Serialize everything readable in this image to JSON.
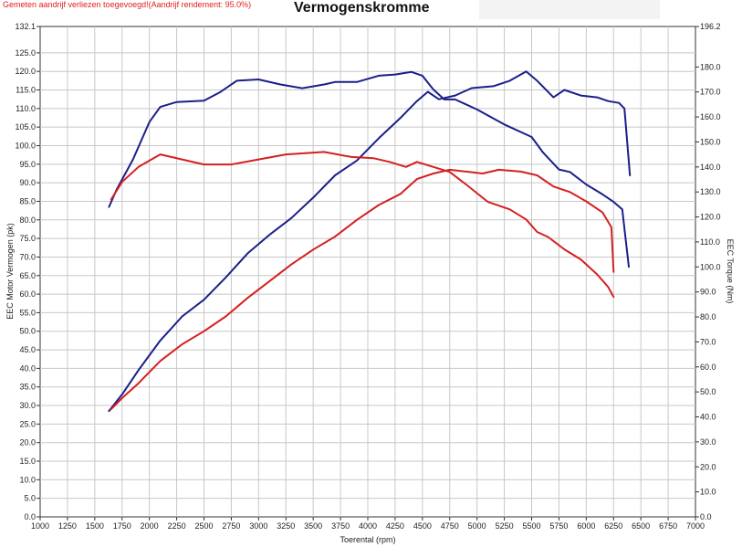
{
  "header": {
    "note": "Gemeten aandrijf verliezen toegevoegd!(Aandrijf rendement: 95.0%)",
    "title": "Vermogenskromme"
  },
  "colors": {
    "series_a": "#1b1f8a",
    "series_b": "#d42020",
    "grid": "#c8c8c8",
    "note": "#e0201e"
  },
  "chart_data": {
    "type": "line",
    "title": "Vermogenskromme",
    "xlabel": "Toerental (rpm)",
    "ylabel_left": "EEC Motor Vermogen (pk)",
    "ylabel_right": "EEC Torque (Nm)",
    "xlim": [
      1000,
      7000
    ],
    "ylim_left": [
      0,
      132.1
    ],
    "ylim_right": [
      0,
      196.2
    ],
    "grid": true,
    "x_ticks": [
      "1000",
      "1250",
      "1500",
      "1750",
      "2000",
      "2250",
      "2500",
      "2750",
      "3000",
      "3250",
      "3500",
      "3750",
      "4000",
      "4250",
      "4500",
      "4750",
      "5000",
      "5250",
      "5500",
      "5750",
      "6000",
      "6250",
      "6500",
      "6750",
      "7000"
    ],
    "y_ticks_left": [
      "0.0",
      "5.0",
      "10.0",
      "15.0",
      "20.0",
      "25.0",
      "30.0",
      "35.0",
      "40.0",
      "45.0",
      "50.0",
      "55.0",
      "60.0",
      "65.0",
      "70.0",
      "75.0",
      "80.0",
      "85.0",
      "90.0",
      "95.0",
      "100.0",
      "105.0",
      "110.0",
      "115.0",
      "120.0",
      "125.0",
      "132.1"
    ],
    "y_ticks_right": [
      "0.0",
      "10.0",
      "20.0",
      "30.0",
      "40.0",
      "50.0",
      "60.0",
      "70.0",
      "80.0",
      "90.0",
      "100.0",
      "110.0",
      "120.0",
      "130.0",
      "140.0",
      "150.0",
      "160.0",
      "170.0",
      "180.0",
      "196.2"
    ],
    "series": [
      {
        "color": "#1b1f8a",
        "axis": "right",
        "points": [
          [
            1630,
            124
          ],
          [
            1700,
            131
          ],
          [
            1850,
            143
          ],
          [
            2000,
            158
          ],
          [
            2100,
            164
          ],
          [
            2250,
            166
          ],
          [
            2500,
            166.5
          ],
          [
            2650,
            170
          ],
          [
            2800,
            174.5
          ],
          [
            3000,
            175
          ],
          [
            3200,
            173
          ],
          [
            3400,
            171.5
          ],
          [
            3600,
            173
          ],
          [
            3700,
            174
          ],
          [
            3900,
            174
          ],
          [
            4100,
            176.5
          ],
          [
            4250,
            177
          ],
          [
            4400,
            178
          ],
          [
            4500,
            176.5
          ],
          [
            4600,
            171
          ],
          [
            4700,
            167
          ],
          [
            4800,
            167
          ],
          [
            5000,
            163
          ],
          [
            5250,
            157
          ],
          [
            5500,
            152
          ],
          [
            5600,
            146
          ],
          [
            5750,
            139
          ],
          [
            5850,
            138
          ],
          [
            6000,
            133
          ],
          [
            6150,
            129
          ],
          [
            6250,
            126
          ],
          [
            6330,
            123
          ],
          [
            6390,
            100
          ]
        ]
      },
      {
        "color": "#1b1f8a",
        "axis": "left",
        "points": [
          [
            1630,
            28.5
          ],
          [
            1750,
            33
          ],
          [
            1900,
            39.5
          ],
          [
            2100,
            47.5
          ],
          [
            2300,
            54
          ],
          [
            2500,
            58.5
          ],
          [
            2700,
            64.5
          ],
          [
            2900,
            71
          ],
          [
            3100,
            76
          ],
          [
            3300,
            80.5
          ],
          [
            3500,
            86
          ],
          [
            3700,
            92
          ],
          [
            3900,
            96
          ],
          [
            4100,
            102
          ],
          [
            4300,
            107.5
          ],
          [
            4450,
            112
          ],
          [
            4550,
            114.5
          ],
          [
            4650,
            112.5
          ],
          [
            4800,
            113.5
          ],
          [
            4950,
            115.5
          ],
          [
            5150,
            116
          ],
          [
            5300,
            117.5
          ],
          [
            5450,
            120
          ],
          [
            5550,
            117.5
          ],
          [
            5700,
            113
          ],
          [
            5800,
            115
          ],
          [
            5950,
            113.5
          ],
          [
            6100,
            113
          ],
          [
            6200,
            112
          ],
          [
            6300,
            111.5
          ],
          [
            6350,
            110
          ],
          [
            6400,
            92
          ]
        ]
      },
      {
        "color": "#d42020",
        "axis": "right",
        "points": [
          [
            1650,
            127
          ],
          [
            1750,
            134
          ],
          [
            1900,
            140
          ],
          [
            2100,
            145
          ],
          [
            2300,
            143
          ],
          [
            2500,
            141
          ],
          [
            2750,
            141
          ],
          [
            3000,
            143
          ],
          [
            3250,
            145
          ],
          [
            3600,
            146
          ],
          [
            3850,
            144
          ],
          [
            4050,
            143.5
          ],
          [
            4200,
            142
          ],
          [
            4350,
            140
          ],
          [
            4450,
            142
          ],
          [
            4600,
            140
          ],
          [
            4750,
            138
          ],
          [
            4900,
            133
          ],
          [
            5100,
            126
          ],
          [
            5300,
            123
          ],
          [
            5450,
            119
          ],
          [
            5550,
            114
          ],
          [
            5650,
            112
          ],
          [
            5800,
            107
          ],
          [
            5950,
            103
          ],
          [
            6100,
            97
          ],
          [
            6200,
            92
          ],
          [
            6250,
            88
          ]
        ]
      },
      {
        "color": "#d42020",
        "axis": "left",
        "points": [
          [
            1650,
            29
          ],
          [
            1750,
            32
          ],
          [
            1900,
            36
          ],
          [
            2100,
            42
          ],
          [
            2300,
            46.5
          ],
          [
            2500,
            50
          ],
          [
            2700,
            54
          ],
          [
            2900,
            59
          ],
          [
            3100,
            63.5
          ],
          [
            3300,
            68
          ],
          [
            3500,
            72
          ],
          [
            3700,
            75.5
          ],
          [
            3900,
            80
          ],
          [
            4100,
            84
          ],
          [
            4300,
            87
          ],
          [
            4450,
            91
          ],
          [
            4600,
            92.5
          ],
          [
            4750,
            93.5
          ],
          [
            4900,
            93
          ],
          [
            5050,
            92.5
          ],
          [
            5200,
            93.5
          ],
          [
            5400,
            93
          ],
          [
            5550,
            92
          ],
          [
            5700,
            89
          ],
          [
            5850,
            87.5
          ],
          [
            6000,
            85
          ],
          [
            6150,
            82
          ],
          [
            6230,
            78
          ],
          [
            6250,
            66
          ]
        ]
      }
    ]
  }
}
